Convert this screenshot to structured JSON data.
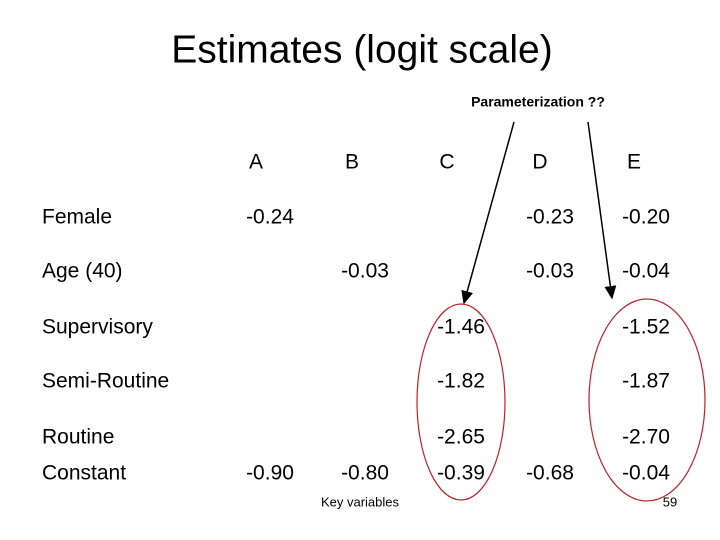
{
  "title": "Estimates (logit scale)",
  "annotation": "Parameterization ??",
  "table": {
    "columns": [
      "A",
      "B",
      "C",
      "D",
      "E"
    ],
    "rows": [
      {
        "label": "Female",
        "cells": [
          "-0.24",
          null,
          null,
          "-0.23",
          "-0.20"
        ]
      },
      {
        "label": "Age (40)",
        "cells": [
          null,
          "-0.03",
          null,
          "-0.03",
          "-0.04"
        ]
      },
      {
        "label": "Supervisory",
        "cells": [
          null,
          null,
          "-1.46",
          null,
          "-1.52"
        ]
      },
      {
        "label": "Semi-Routine",
        "cells": [
          null,
          null,
          "-1.82",
          null,
          "-1.87"
        ]
      },
      {
        "label": "Routine",
        "cells": [
          null,
          null,
          "-2.65",
          null,
          "-2.70"
        ]
      },
      {
        "label": "Constant",
        "cells": [
          "-0.90",
          "-0.80",
          "-0.39",
          "-0.68",
          "-0.04"
        ]
      }
    ]
  },
  "footnote": "Key variables",
  "page_number": "59"
}
